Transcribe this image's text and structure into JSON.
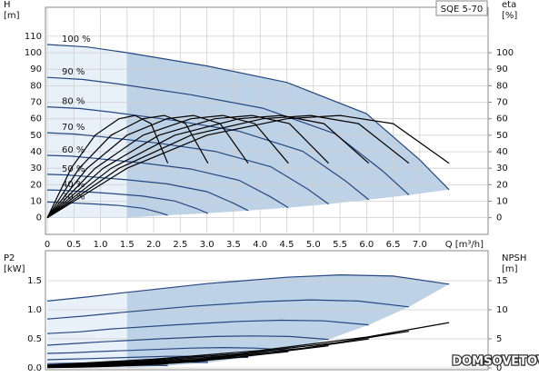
{
  "chart_data": [
    {
      "type": "line",
      "label": "SQE 5-70",
      "ylabel": [
        "H",
        "[m]"
      ],
      "y2label": [
        "eta",
        "[%]"
      ],
      "xlabel": "Q [m³/h]",
      "xlim": [
        0,
        8.3
      ],
      "ylim": [
        -9,
        127
      ],
      "y2lim": [
        -9,
        127
      ],
      "xticks": [
        0,
        0.5,
        {
          "value": 1,
          "label": "1.0"
        },
        1.5,
        {
          "value": 2,
          "label": "2.0"
        },
        2.5,
        {
          "value": 3,
          "label": "3.0"
        },
        3.5,
        {
          "value": 4,
          "label": "4.0"
        },
        4.5,
        {
          "value": 5,
          "label": "5.0"
        },
        5.5,
        {
          "value": 6,
          "label": "6.0"
        },
        6.5,
        {
          "value": 7,
          "label": "7.0"
        }
      ],
      "yticks": [
        0,
        10,
        20,
        30,
        40,
        50,
        60,
        70,
        80,
        90,
        100,
        110
      ],
      "y2ticks": [
        0,
        10,
        20,
        30,
        40,
        50,
        60,
        70,
        80,
        90,
        100
      ],
      "grid": true,
      "shaded": true,
      "series": [
        {
          "name": "100 %",
          "color": "#27477f",
          "x": [
            0,
            0.75,
            1.5,
            3,
            4.5,
            6,
            7,
            7.55
          ],
          "values": [
            105,
            103.5,
            100,
            92,
            82,
            63,
            35,
            17
          ]
        },
        {
          "name": "90 %",
          "color": "#27477f",
          "x": [
            0,
            0.675,
            1.35,
            2.7,
            4.05,
            5.4,
            6.3,
            6.795
          ],
          "values": [
            85.05,
            83.8,
            81,
            74.5,
            66.4,
            51,
            28.4,
            13.8
          ]
        },
        {
          "name": "80 %",
          "color": "#27477f",
          "x": [
            0,
            0.6,
            1.2,
            2.4,
            3.6,
            4.8,
            5.6,
            6.04
          ],
          "values": [
            67.2,
            66.2,
            64,
            58.9,
            52.5,
            40.3,
            22.4,
            10.9
          ]
        },
        {
          "name": "70 %",
          "color": "#27477f",
          "x": [
            0,
            0.525,
            1.05,
            2.1,
            3.15,
            4.2,
            4.9,
            5.285
          ],
          "values": [
            51.5,
            50.7,
            49,
            45.1,
            40.2,
            30.9,
            17.2,
            8.3
          ]
        },
        {
          "name": "60 %",
          "color": "#27477f",
          "x": [
            0,
            0.45,
            0.9,
            1.8,
            2.7,
            3.6,
            4.2,
            4.53
          ],
          "values": [
            37.8,
            37.3,
            36,
            33.1,
            29.5,
            22.7,
            12.6,
            6.1
          ]
        },
        {
          "name": "50 %",
          "color": "#27477f",
          "x": [
            0,
            0.375,
            0.75,
            1.5,
            2.25,
            3,
            3.5,
            3.775
          ],
          "values": [
            26.3,
            25.9,
            25,
            23,
            20.5,
            15.8,
            8.8,
            4.3
          ]
        },
        {
          "name": "40 %",
          "color": "#27477f",
          "x": [
            0,
            0.3,
            0.6,
            1.2,
            1.8,
            2.4,
            2.8,
            3.02
          ],
          "values": [
            16.8,
            16.6,
            16,
            14.7,
            13.1,
            10.1,
            5.6,
            2.7
          ]
        },
        {
          "name": "30 %",
          "color": "#27477f",
          "x": [
            0,
            0.225,
            0.45,
            0.9,
            1.35,
            1.8,
            2.1,
            2.265
          ],
          "values": [
            9.5,
            9.3,
            9,
            8.3,
            7.4,
            5.7,
            3.2,
            1.5
          ]
        },
        {
          "color": "#000000",
          "axis": "y2",
          "x": [
            0,
            1.5,
            3,
            4.5,
            5.5,
            6.5,
            7.55
          ],
          "values": [
            0,
            30,
            50,
            60,
            62,
            57,
            33
          ]
        },
        {
          "color": "#000000",
          "axis": "y2",
          "x": [
            0,
            1.35,
            2.7,
            4.05,
            4.95,
            5.85,
            6.795
          ],
          "values": [
            0,
            30,
            50,
            60,
            62,
            57,
            33
          ]
        },
        {
          "color": "#000000",
          "axis": "y2",
          "x": [
            0,
            1.2,
            2.4,
            3.6,
            4.4,
            5.2,
            6.04
          ],
          "values": [
            0,
            30,
            50,
            60,
            62,
            57,
            33
          ]
        },
        {
          "color": "#000000",
          "axis": "y2",
          "x": [
            0,
            1.05,
            2.1,
            3.15,
            3.85,
            4.55,
            5.285
          ],
          "values": [
            0,
            30,
            50,
            60,
            62,
            57,
            33
          ]
        },
        {
          "color": "#000000",
          "axis": "y2",
          "x": [
            0,
            0.9,
            1.8,
            2.7,
            3.3,
            3.9,
            4.53
          ],
          "values": [
            0,
            30,
            50,
            60,
            62,
            57,
            33
          ]
        },
        {
          "color": "#000000",
          "axis": "y2",
          "x": [
            0,
            0.75,
            1.5,
            2.25,
            2.75,
            3.25,
            3.775
          ],
          "values": [
            0,
            30,
            50,
            60,
            62,
            57,
            33
          ]
        },
        {
          "color": "#000000",
          "axis": "y2",
          "x": [
            0,
            0.6,
            1.2,
            1.8,
            2.2,
            2.6,
            3.02
          ],
          "values": [
            0,
            30,
            50,
            60,
            62,
            57,
            33
          ]
        },
        {
          "color": "#000000",
          "axis": "y2",
          "x": [
            0,
            0.45,
            0.9,
            1.35,
            1.65,
            1.95,
            2.265
          ],
          "values": [
            0,
            30,
            50,
            60,
            62,
            57,
            33
          ]
        }
      ]
    },
    {
      "type": "line",
      "ylabel": [
        "P2",
        "[kW]"
      ],
      "y2label": [
        "NPSH",
        "[m]"
      ],
      "xlim": [
        0,
        8.3
      ],
      "ylim": [
        0,
        2
      ],
      "y2lim": [
        0,
        20
      ],
      "yticks": [
        {
          "value": 0,
          "label": "0.0"
        },
        0.5,
        {
          "value": 1,
          "label": "1.0"
        },
        1.5
      ],
      "y2ticks": [
        0,
        5,
        10,
        15
      ],
      "grid": true,
      "shaded": true,
      "series": [
        {
          "color": "#27477f",
          "x": [
            0,
            0.75,
            1.5,
            3,
            4.5,
            5.5,
            6.5,
            7.55
          ],
          "values": [
            1.15,
            1.22,
            1.3,
            1.45,
            1.56,
            1.6,
            1.58,
            1.44
          ]
        },
        {
          "color": "#27477f",
          "x": [
            0,
            0.675,
            1.35,
            2.7,
            4.05,
            4.95,
            5.85,
            6.795
          ],
          "values": [
            0.84,
            0.89,
            0.95,
            1.06,
            1.14,
            1.17,
            1.15,
            1.05
          ]
        },
        {
          "color": "#27477f",
          "x": [
            0,
            0.6,
            1.2,
            2.4,
            3.6,
            4.4,
            5.2,
            6.04
          ],
          "values": [
            0.59,
            0.62,
            0.67,
            0.74,
            0.8,
            0.82,
            0.81,
            0.74
          ]
        },
        {
          "color": "#27477f",
          "x": [
            0,
            0.525,
            1.05,
            2.1,
            3.15,
            3.85,
            4.55,
            5.285
          ],
          "values": [
            0.39,
            0.42,
            0.45,
            0.5,
            0.54,
            0.55,
            0.54,
            0.49
          ]
        },
        {
          "color": "#27477f",
          "x": [
            0,
            0.45,
            0.9,
            1.8,
            2.7,
            3.3,
            3.9,
            4.53
          ],
          "values": [
            0.25,
            0.26,
            0.28,
            0.31,
            0.34,
            0.35,
            0.34,
            0.31
          ]
        },
        {
          "color": "#27477f",
          "x": [
            0,
            0.375,
            0.75,
            1.5,
            2.25,
            2.75,
            3.25,
            3.775
          ],
          "values": [
            0.14,
            0.15,
            0.16,
            0.18,
            0.2,
            0.2,
            0.2,
            0.18
          ]
        },
        {
          "color": "#27477f",
          "x": [
            0,
            0.3,
            0.6,
            1.2,
            1.8,
            2.2,
            2.6,
            3.02
          ],
          "values": [
            0.074,
            0.078,
            0.083,
            0.093,
            0.1,
            0.1,
            0.1,
            0.092
          ]
        },
        {
          "color": "#27477f",
          "x": [
            0,
            0.225,
            0.45,
            0.9,
            1.35,
            1.65,
            1.95,
            2.265
          ],
          "values": [
            0.031,
            0.033,
            0.035,
            0.039,
            0.042,
            0.043,
            0.043,
            0.039
          ]
        },
        {
          "color": "#000000",
          "axis": "y2",
          "x": [
            0,
            2,
            4,
            6,
            7.55
          ],
          "values": [
            0.5,
            1.5,
            3,
            5.3,
            7.8
          ]
        },
        {
          "color": "#000000",
          "axis": "y2",
          "x": [
            0,
            1.8,
            3.6,
            5.4,
            6.795
          ],
          "values": [
            0.41,
            1.22,
            2.43,
            4.29,
            6.32
          ]
        },
        {
          "color": "#000000",
          "axis": "y2",
          "x": [
            0,
            1.6,
            3.2,
            4.8,
            6.04
          ],
          "values": [
            0.32,
            0.96,
            1.92,
            3.39,
            4.99
          ]
        },
        {
          "color": "#000000",
          "axis": "y2",
          "x": [
            0,
            1.4,
            2.8,
            4.2,
            5.285
          ],
          "values": [
            0.25,
            0.74,
            1.47,
            2.6,
            3.82
          ]
        },
        {
          "color": "#000000",
          "axis": "y2",
          "x": [
            0,
            1.2,
            2.4,
            3.6,
            4.53
          ],
          "values": [
            0.18,
            0.54,
            1.08,
            1.91,
            2.81
          ]
        },
        {
          "color": "#000000",
          "axis": "y2",
          "x": [
            0,
            1,
            2,
            3,
            3.775
          ],
          "values": [
            0.13,
            0.38,
            0.75,
            1.33,
            1.95
          ]
        },
        {
          "color": "#000000",
          "axis": "y2",
          "x": [
            0,
            0.8,
            1.6,
            2.4,
            3.02
          ],
          "values": [
            0.08,
            0.24,
            0.48,
            0.85,
            1.25
          ]
        },
        {
          "color": "#000000",
          "axis": "y2",
          "x": [
            0,
            0.6,
            1.2,
            1.8,
            2.265
          ],
          "values": [
            0.05,
            0.14,
            0.27,
            0.48,
            0.7
          ]
        }
      ]
    }
  ],
  "watermark": "DOMSOVETOV.BY"
}
